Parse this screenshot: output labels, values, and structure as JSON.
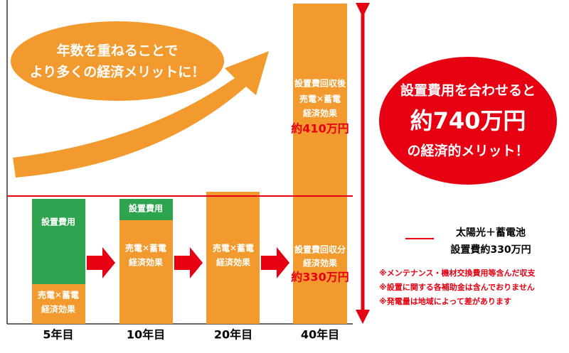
{
  "bubble": {
    "lines": [
      "年数を重ねることで",
      "より多くの経済メリットに！"
    ]
  },
  "bars": [
    {
      "label": "5年目",
      "segments": [
        {
          "text": [
            "設置費用"
          ]
        },
        {
          "text": [
            "売電✕蓄電",
            "経済効果"
          ]
        }
      ]
    },
    {
      "label": "10年目",
      "segments": [
        {
          "text": [
            "設置費用"
          ]
        },
        {
          "text": [
            "売電✕蓄電",
            "経済効果"
          ]
        }
      ]
    },
    {
      "label": "20年目",
      "segments": [
        {
          "text": [
            "売電✕蓄電",
            "経済効果"
          ]
        }
      ]
    },
    {
      "label": "40年目",
      "segments": [
        {
          "text": [
            "設置費回収後",
            "売電✕蓄電",
            "経済効果"
          ],
          "amount": "約410万円"
        },
        {
          "text": [
            "設置費回収分",
            "経済効果"
          ],
          "amount": "約330万円"
        }
      ]
    }
  ],
  "total": {
    "lines": [
      "設置費用を合わせると",
      "約740万円",
      "の経済的メリット！"
    ]
  },
  "legend": {
    "lines": [
      "太陽光＋蓄電池",
      "設置費約330万円"
    ]
  },
  "notes": [
    "※メンテナンス・機材交換費用等含んだ収支",
    "※設置に関する各補助金は含んでおりません",
    "※発電量は地域によって差があります"
  ]
}
